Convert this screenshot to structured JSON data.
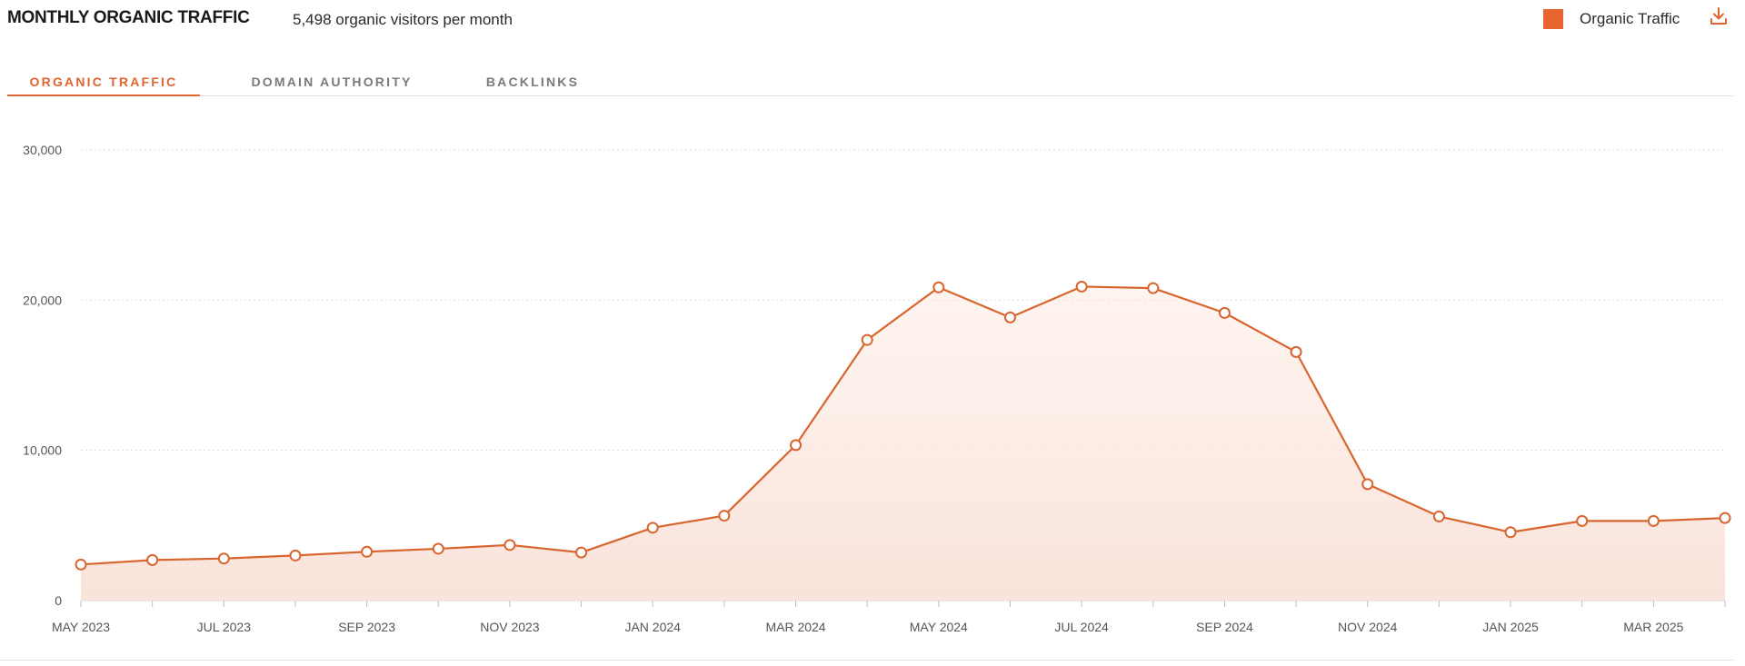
{
  "header": {
    "title": "MONTHLY ORGANIC TRAFFIC",
    "subtitle": "5,498 organic visitors per month",
    "legend_label": "Organic Traffic",
    "download_icon": "download-icon"
  },
  "tabs": [
    {
      "label": "ORGANIC TRAFFIC",
      "active": true
    },
    {
      "label": "DOMAIN AUTHORITY",
      "active": false
    },
    {
      "label": "BACKLINKS",
      "active": false
    }
  ],
  "colors": {
    "accent": "#e0642e",
    "legend_swatch": "#e8652f",
    "line": "#d9652e",
    "area_top": "#fde9e0",
    "area_bottom": "#f9e3da",
    "grid": "#dcdcdc"
  },
  "chart_data": {
    "type": "area",
    "x_tick_labels": [
      "MAY 2023",
      "JUL 2023",
      "SEP 2023",
      "NOV 2023",
      "JAN 2024",
      "MAR 2024",
      "MAY 2024",
      "JUL 2024",
      "SEP 2024",
      "NOV 2024",
      "JAN 2025",
      "MAR 2025"
    ],
    "y_tick_labels": [
      "0",
      "10,000",
      "20,000",
      "30,000"
    ],
    "ylim": [
      0,
      30000
    ],
    "grid": true,
    "legend_position": "top-right",
    "series": [
      {
        "name": "Organic Traffic",
        "x": [
          "2023-05",
          "2023-06",
          "2023-07",
          "2023-08",
          "2023-09",
          "2023-10",
          "2023-11",
          "2023-12",
          "2024-01",
          "2024-02",
          "2024-03",
          "2024-04",
          "2024-05",
          "2024-06",
          "2024-07",
          "2024-08",
          "2024-09",
          "2024-10",
          "2024-11",
          "2024-12",
          "2025-01",
          "2025-02",
          "2025-03",
          "2025-04"
        ],
        "values": [
          2400,
          2700,
          2800,
          3000,
          3250,
          3450,
          3700,
          3200,
          4850,
          5650,
          10350,
          17350,
          20850,
          18850,
          20900,
          20800,
          19150,
          16550,
          7750,
          5600,
          4550,
          5300,
          5300,
          5498
        ]
      }
    ]
  }
}
